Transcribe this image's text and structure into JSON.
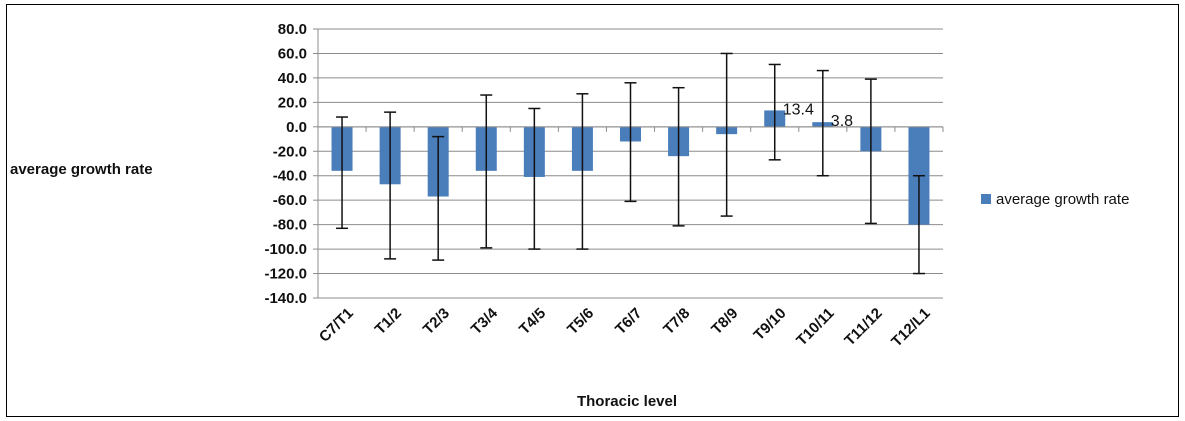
{
  "chart_data": {
    "type": "bar",
    "title": "",
    "xlabel": "Thoracic level",
    "ylabel": "average growth rate",
    "ylim": [
      -140,
      80
    ],
    "y_tick_step": 20,
    "y_tick_labels": [
      "80.0",
      "60.0",
      "40.0",
      "20.0",
      "0.0",
      "-20.0",
      "-40.0",
      "-60.0",
      "-80.0",
      "-100.0",
      "-120.0",
      "-140.0"
    ],
    "grid": true,
    "legend_position": "right",
    "categories": [
      "C7/T1",
      "T1/2",
      "T2/3",
      "T3/4",
      "T4/5",
      "T5/6",
      "T6/7",
      "T7/8",
      "T8/9",
      "T9/10",
      "T10/11",
      "T11/12",
      "T12/L1"
    ],
    "series": [
      {
        "name": "average growth rate",
        "color": "#4a7ebb",
        "values": [
          -36,
          -47,
          -57,
          -36,
          -41,
          -36,
          -12,
          -24,
          -6,
          13.4,
          3.8,
          -20,
          -80
        ],
        "error_upper": [
          8,
          12,
          -8,
          26,
          15,
          27,
          36,
          32,
          60,
          51,
          46,
          39,
          -40
        ],
        "error_lower": [
          -83,
          -108,
          -109,
          -99,
          -100,
          -100,
          -61,
          -81,
          -73,
          -27,
          -40,
          -79,
          -120
        ],
        "data_labels": [
          {
            "index": 9,
            "text": "13.4"
          },
          {
            "index": 10,
            "text": "3.8"
          }
        ]
      }
    ]
  }
}
